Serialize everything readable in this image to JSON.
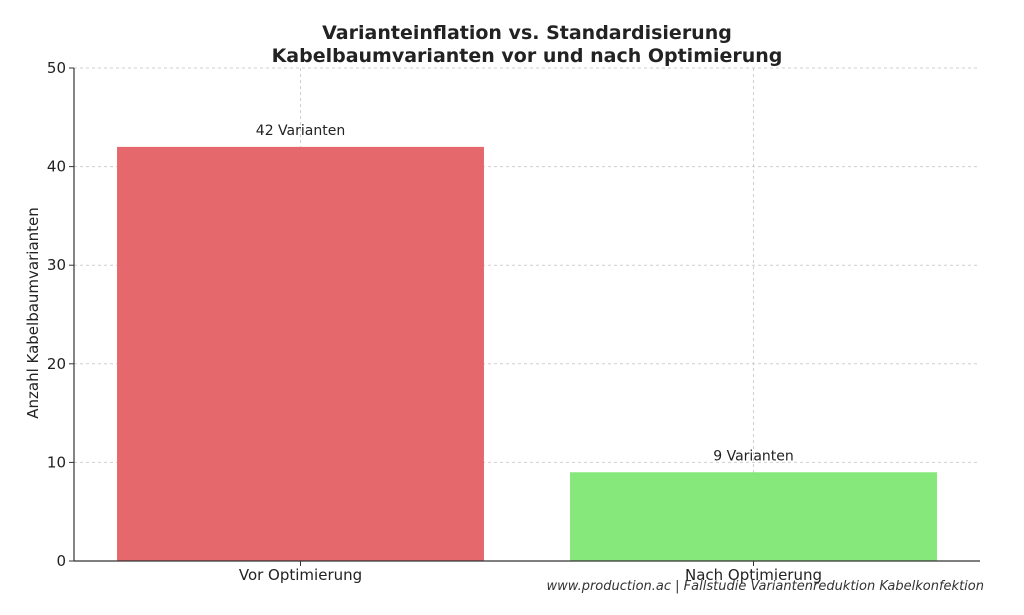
{
  "chart_data": {
    "type": "bar",
    "title_lines": [
      "Varianteinflation vs. Standardisierung",
      "Kabelbaumvarianten vor und nach Optimierung"
    ],
    "xlabel": "",
    "ylabel": "Anzahl Kabelbaumvarianten",
    "categories": [
      "Vor Optimierung",
      "Nach Optimierung"
    ],
    "values": [
      42,
      9
    ],
    "data_labels": [
      "42 Varianten",
      "9 Varianten"
    ],
    "bar_colors": [
      "#e4686c",
      "#86e87a"
    ],
    "ylim": [
      0,
      50
    ],
    "yticks": [
      "0",
      "10",
      "20",
      "30",
      "40",
      "50"
    ],
    "grid": true,
    "source_note": "www.production.ac | Fallstudie Variantenreduktion Kabelkonfektion"
  }
}
